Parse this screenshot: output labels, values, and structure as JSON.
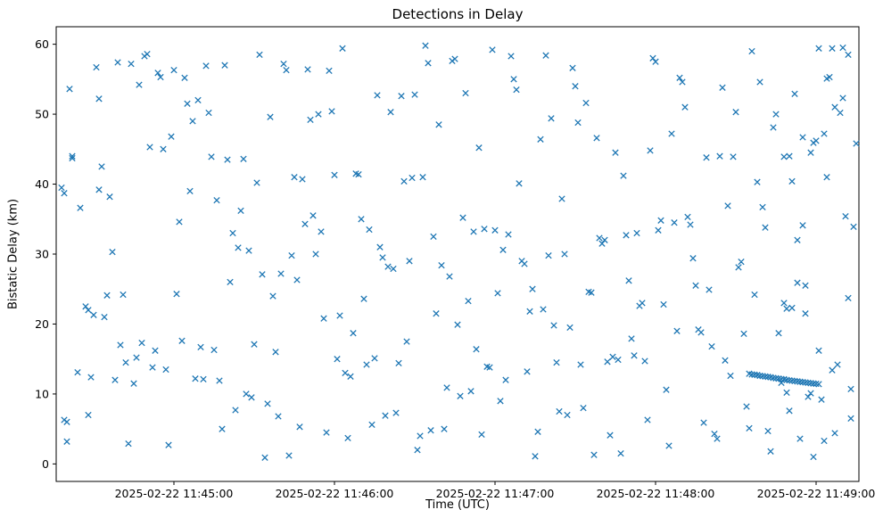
{
  "chart_data": {
    "type": "scatter",
    "title": "Detections in Delay",
    "xlabel": "Time (UTC)",
    "ylabel": "Bistatic Delay (km)",
    "marker": "x",
    "marker_color": "#1f77b4",
    "grid": false,
    "legend": null,
    "x_unit": "seconds relative to 2025-02-22 11:45:00 UTC",
    "xlim": [
      -44,
      256
    ],
    "ylim": [
      -2.5,
      62.5
    ],
    "x_ticks": [
      0,
      60,
      120,
      180,
      240
    ],
    "x_tick_labels": [
      "2025-02-22 11:45:00",
      "2025-02-22 11:46:00",
      "2025-02-22 11:47:00",
      "2025-02-22 11:48:00",
      "2025-02-22 11:49:00"
    ],
    "y_ticks": [
      0,
      10,
      20,
      30,
      40,
      50,
      60
    ],
    "points": [
      [
        -42,
        39.5
      ],
      [
        -41,
        6.3
      ],
      [
        -41,
        38.7
      ],
      [
        -40,
        6.0
      ],
      [
        -40,
        3.2
      ],
      [
        -39,
        53.6
      ],
      [
        -38,
        44.0
      ],
      [
        -38,
        43.7
      ],
      [
        -36,
        13.1
      ],
      [
        -35,
        36.6
      ],
      [
        -33,
        22.5
      ],
      [
        -32,
        7.0
      ],
      [
        -32,
        22.0
      ],
      [
        -31,
        12.4
      ],
      [
        -30,
        21.3
      ],
      [
        -29,
        56.7
      ],
      [
        -28,
        39.2
      ],
      [
        -28,
        52.2
      ],
      [
        -27,
        42.5
      ],
      [
        -26,
        21.0
      ],
      [
        -25,
        24.1
      ],
      [
        -24,
        38.2
      ],
      [
        -23,
        30.3
      ],
      [
        -22,
        12.0
      ],
      [
        -21,
        57.4
      ],
      [
        -20,
        17.0
      ],
      [
        -19,
        24.2
      ],
      [
        -18,
        14.5
      ],
      [
        -17,
        2.9
      ],
      [
        -16,
        57.2
      ],
      [
        -15,
        11.5
      ],
      [
        -14,
        15.2
      ],
      [
        -13,
        54.2
      ],
      [
        -12,
        17.3
      ],
      [
        -11,
        58.3
      ],
      [
        -10,
        58.6
      ],
      [
        -9,
        45.3
      ],
      [
        -8,
        13.8
      ],
      [
        -7,
        16.2
      ],
      [
        -6,
        55.9
      ],
      [
        -5,
        55.3
      ],
      [
        -4,
        45.0
      ],
      [
        -3,
        13.5
      ],
      [
        -2,
        2.7
      ],
      [
        -1,
        46.8
      ],
      [
        0,
        56.3
      ],
      [
        1,
        24.3
      ],
      [
        2,
        34.6
      ],
      [
        3,
        17.6
      ],
      [
        4,
        55.2
      ],
      [
        5,
        51.5
      ],
      [
        6,
        39.0
      ],
      [
        7,
        49.0
      ],
      [
        8,
        12.2
      ],
      [
        9,
        52.0
      ],
      [
        10,
        16.7
      ],
      [
        11,
        12.1
      ],
      [
        12,
        56.9
      ],
      [
        13,
        50.2
      ],
      [
        14,
        43.9
      ],
      [
        15,
        16.3
      ],
      [
        16,
        37.7
      ],
      [
        17,
        11.9
      ],
      [
        18,
        5.0
      ],
      [
        19,
        57.0
      ],
      [
        20,
        43.5
      ],
      [
        21,
        26.0
      ],
      [
        22,
        33.0
      ],
      [
        23,
        7.7
      ],
      [
        24,
        30.9
      ],
      [
        25,
        36.2
      ],
      [
        26,
        43.6
      ],
      [
        27,
        10.0
      ],
      [
        28,
        30.5
      ],
      [
        29,
        9.5
      ],
      [
        30,
        17.1
      ],
      [
        31,
        40.2
      ],
      [
        32,
        58.5
      ],
      [
        33,
        27.1
      ],
      [
        34,
        0.9
      ],
      [
        35,
        8.6
      ],
      [
        36,
        49.6
      ],
      [
        37,
        24.0
      ],
      [
        38,
        16.0
      ],
      [
        39,
        6.8
      ],
      [
        40,
        27.2
      ],
      [
        41,
        57.2
      ],
      [
        42,
        56.3
      ],
      [
        43,
        1.2
      ],
      [
        44,
        29.8
      ],
      [
        45,
        41.0
      ],
      [
        46,
        26.3
      ],
      [
        47,
        5.3
      ],
      [
        48,
        40.7
      ],
      [
        49,
        34.3
      ],
      [
        50,
        56.4
      ],
      [
        51,
        49.2
      ],
      [
        52,
        35.5
      ],
      [
        53,
        30.0
      ],
      [
        54,
        50.0
      ],
      [
        55,
        33.2
      ],
      [
        56,
        20.8
      ],
      [
        57,
        4.5
      ],
      [
        58,
        56.2
      ],
      [
        59,
        50.4
      ],
      [
        60,
        41.3
      ],
      [
        61,
        15.0
      ],
      [
        62,
        21.2
      ],
      [
        63,
        59.4
      ],
      [
        64,
        13.0
      ],
      [
        65,
        3.7
      ],
      [
        66,
        12.5
      ],
      [
        67,
        18.7
      ],
      [
        68,
        41.5
      ],
      [
        69,
        41.4
      ],
      [
        70,
        35.0
      ],
      [
        71,
        23.6
      ],
      [
        72,
        14.2
      ],
      [
        73,
        33.5
      ],
      [
        74,
        5.6
      ],
      [
        75,
        15.1
      ],
      [
        76,
        52.7
      ],
      [
        77,
        31.0
      ],
      [
        78,
        29.5
      ],
      [
        79,
        6.9
      ],
      [
        80,
        28.2
      ],
      [
        81,
        50.3
      ],
      [
        82,
        27.9
      ],
      [
        83,
        7.3
      ],
      [
        84,
        14.4
      ],
      [
        85,
        52.6
      ],
      [
        86,
        40.4
      ],
      [
        87,
        17.5
      ],
      [
        88,
        29.0
      ],
      [
        89,
        40.9
      ],
      [
        90,
        52.8
      ],
      [
        91,
        2.0
      ],
      [
        92,
        4.0
      ],
      [
        93,
        41.0
      ],
      [
        94,
        59.8
      ],
      [
        95,
        57.3
      ],
      [
        96,
        4.8
      ],
      [
        97,
        32.5
      ],
      [
        98,
        21.5
      ],
      [
        99,
        48.5
      ],
      [
        100,
        28.4
      ],
      [
        101,
        5.0
      ],
      [
        102,
        10.9
      ],
      [
        103,
        26.8
      ],
      [
        104,
        57.6
      ],
      [
        105,
        57.9
      ],
      [
        106,
        19.9
      ],
      [
        107,
        9.7
      ],
      [
        108,
        35.2
      ],
      [
        109,
        53.0
      ],
      [
        110,
        23.3
      ],
      [
        111,
        10.4
      ],
      [
        112,
        33.2
      ],
      [
        113,
        16.4
      ],
      [
        114,
        45.2
      ],
      [
        115,
        4.2
      ],
      [
        116,
        33.6
      ],
      [
        117,
        13.9
      ],
      [
        118,
        13.8
      ],
      [
        119,
        59.2
      ],
      [
        120,
        33.4
      ],
      [
        121,
        24.4
      ],
      [
        122,
        9.0
      ],
      [
        123,
        30.6
      ],
      [
        124,
        12.0
      ],
      [
        125,
        32.8
      ],
      [
        126,
        58.3
      ],
      [
        127,
        55.0
      ],
      [
        128,
        53.5
      ],
      [
        129,
        40.1
      ],
      [
        130,
        29.0
      ],
      [
        131,
        28.6
      ],
      [
        132,
        13.2
      ],
      [
        133,
        21.8
      ],
      [
        134,
        25.0
      ],
      [
        135,
        1.1
      ],
      [
        136,
        4.6
      ],
      [
        137,
        46.4
      ],
      [
        138,
        22.1
      ],
      [
        139,
        58.4
      ],
      [
        140,
        29.8
      ],
      [
        141,
        49.4
      ],
      [
        142,
        19.8
      ],
      [
        143,
        14.5
      ],
      [
        144,
        7.5
      ],
      [
        145,
        37.9
      ],
      [
        146,
        30.0
      ],
      [
        147,
        7.0
      ],
      [
        148,
        19.5
      ],
      [
        149,
        56.6
      ],
      [
        150,
        54.0
      ],
      [
        151,
        48.8
      ],
      [
        152,
        14.2
      ],
      [
        153,
        8.0
      ],
      [
        154,
        51.6
      ],
      [
        155,
        24.6
      ],
      [
        156,
        24.5
      ],
      [
        157,
        1.3
      ],
      [
        158,
        46.6
      ],
      [
        159,
        32.3
      ],
      [
        160,
        31.5
      ],
      [
        161,
        32.0
      ],
      [
        162,
        14.6
      ],
      [
        163,
        4.1
      ],
      [
        164,
        15.3
      ],
      [
        165,
        44.5
      ],
      [
        166,
        14.9
      ],
      [
        167,
        1.5
      ],
      [
        168,
        41.2
      ],
      [
        169,
        32.7
      ],
      [
        170,
        26.2
      ],
      [
        171,
        17.9
      ],
      [
        172,
        15.5
      ],
      [
        173,
        33.0
      ],
      [
        174,
        22.6
      ],
      [
        175,
        23.0
      ],
      [
        176,
        14.7
      ],
      [
        177,
        6.3
      ],
      [
        178,
        44.8
      ],
      [
        179,
        58.0
      ],
      [
        180,
        57.5
      ],
      [
        181,
        33.4
      ],
      [
        182,
        34.8
      ],
      [
        183,
        22.8
      ],
      [
        184,
        10.6
      ],
      [
        185,
        2.6
      ],
      [
        186,
        47.2
      ],
      [
        187,
        34.5
      ],
      [
        188,
        19.0
      ],
      [
        189,
        55.2
      ],
      [
        190,
        54.6
      ],
      [
        191,
        51.0
      ],
      [
        192,
        35.3
      ],
      [
        193,
        34.2
      ],
      [
        194,
        29.4
      ],
      [
        195,
        25.5
      ],
      [
        196,
        19.2
      ],
      [
        197,
        18.8
      ],
      [
        198,
        5.9
      ],
      [
        199,
        43.8
      ],
      [
        200,
        24.9
      ],
      [
        201,
        16.8
      ],
      [
        202,
        4.3
      ],
      [
        203,
        3.6
      ],
      [
        204,
        44.0
      ],
      [
        205,
        53.8
      ],
      [
        206,
        14.8
      ],
      [
        207,
        36.9
      ],
      [
        208,
        12.6
      ],
      [
        209,
        43.9
      ],
      [
        210,
        50.3
      ],
      [
        211,
        28.1
      ],
      [
        212,
        28.9
      ],
      [
        213,
        18.6
      ],
      [
        214,
        8.2
      ],
      [
        215,
        5.1
      ],
      [
        216,
        59.0
      ],
      [
        217,
        24.2
      ],
      [
        218,
        40.3
      ],
      [
        219,
        54.6
      ],
      [
        220,
        36.7
      ],
      [
        221,
        33.8
      ],
      [
        222,
        4.7
      ],
      [
        223,
        1.8
      ],
      [
        224,
        48.1
      ],
      [
        225,
        50.0
      ],
      [
        226,
        18.7
      ],
      [
        227,
        11.6
      ],
      [
        228,
        23.0
      ],
      [
        229,
        10.2
      ],
      [
        230,
        7.6
      ],
      [
        231,
        40.4
      ],
      [
        232,
        52.9
      ],
      [
        233,
        32.0
      ],
      [
        234,
        3.6
      ],
      [
        235,
        34.1
      ],
      [
        236,
        21.5
      ],
      [
        237,
        9.6
      ],
      [
        238,
        10.1
      ],
      [
        239,
        45.9
      ],
      [
        240,
        46.2
      ],
      [
        241,
        16.2
      ],
      [
        242,
        9.2
      ],
      [
        243,
        3.3
      ],
      [
        244,
        55.1
      ],
      [
        245,
        55.3
      ],
      [
        246,
        13.4
      ],
      [
        247,
        4.4
      ],
      [
        248,
        14.2
      ],
      [
        249,
        50.2
      ],
      [
        250,
        59.5
      ],
      [
        251,
        35.4
      ],
      [
        252,
        23.7
      ],
      [
        253,
        6.5
      ],
      [
        239,
        1.0
      ],
      [
        254,
        33.9
      ],
      [
        255,
        45.8
      ],
      [
        253,
        10.7
      ],
      [
        241,
        59.4
      ],
      [
        246,
        59.4
      ],
      [
        250,
        52.3
      ],
      [
        252,
        58.5
      ],
      [
        247,
        51.0
      ],
      [
        244,
        41.0
      ],
      [
        238,
        44.5
      ],
      [
        243,
        47.2
      ],
      [
        235,
        46.7
      ],
      [
        230,
        44.0
      ],
      [
        228,
        43.9
      ],
      [
        233,
        25.9
      ],
      [
        236,
        25.5
      ],
      [
        231,
        22.3
      ],
      [
        229,
        22.2
      ],
      [
        215,
        12.9
      ],
      [
        216,
        12.8
      ],
      [
        217,
        12.75
      ],
      [
        218,
        12.7
      ],
      [
        219,
        12.6
      ],
      [
        220,
        12.55
      ],
      [
        221,
        12.5
      ],
      [
        222,
        12.45
      ],
      [
        223,
        12.4
      ],
      [
        224,
        12.3
      ],
      [
        225,
        12.25
      ],
      [
        226,
        12.2
      ],
      [
        227,
        12.15
      ],
      [
        228,
        12.1
      ],
      [
        229,
        12.0
      ],
      [
        230,
        11.95
      ],
      [
        231,
        11.9
      ],
      [
        232,
        11.85
      ],
      [
        233,
        11.8
      ],
      [
        234,
        11.75
      ],
      [
        235,
        11.7
      ],
      [
        236,
        11.65
      ],
      [
        237,
        11.6
      ],
      [
        238,
        11.55
      ],
      [
        239,
        11.5
      ],
      [
        240,
        11.45
      ],
      [
        241,
        11.4
      ]
    ]
  }
}
